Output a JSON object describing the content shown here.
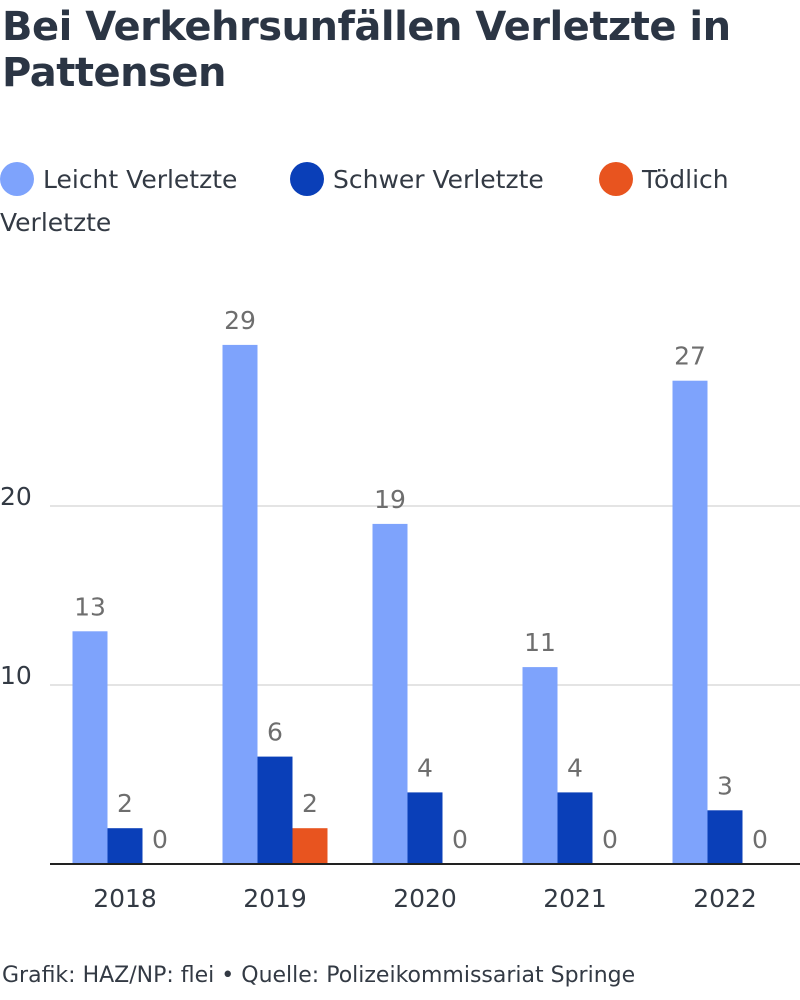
{
  "title_line1": "Bei Verkehrsunfällen Verletzte in",
  "title_line2": "Pattensen",
  "footer": "Grafik: HAZ/NP: flei • Quelle: Polizeikommissariat Springe",
  "legend": [
    {
      "label": "Leicht Verletzte",
      "color": "#7ea3fc"
    },
    {
      "label": "Schwer Verletzte",
      "color": "#0a3fb8"
    },
    {
      "label": "Tödlich",
      "label_cont": "Verletzte",
      "color": "#e8541f"
    }
  ],
  "chart_data": {
    "type": "bar",
    "categories": [
      "2018",
      "2019",
      "2020",
      "2021",
      "2022"
    ],
    "series": [
      {
        "name": "Leicht Verletzte",
        "color": "#7ea3fc",
        "values": [
          13,
          29,
          19,
          11,
          27
        ]
      },
      {
        "name": "Schwer Verletzte",
        "color": "#0a3fb8",
        "values": [
          2,
          6,
          4,
          4,
          3
        ]
      },
      {
        "name": "Tödlich Verletzte",
        "color": "#e8541f",
        "values": [
          0,
          2,
          0,
          0,
          0
        ]
      }
    ],
    "yticks": [
      10,
      20
    ],
    "ylim": [
      0,
      32
    ],
    "grid": true,
    "legend_position": "top",
    "data_labels": true
  }
}
